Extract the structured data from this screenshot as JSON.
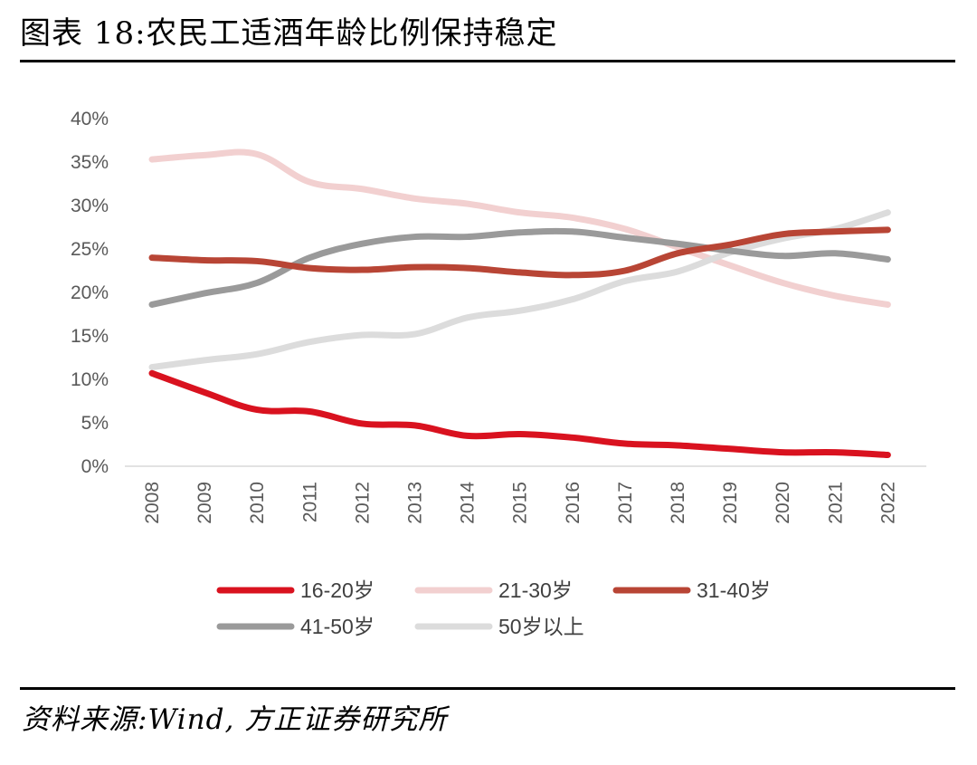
{
  "header": {
    "title": "图表 18:农民工适酒年龄比例保持稳定"
  },
  "footer": {
    "source": "资料来源:Wind, 方正证券研究所"
  },
  "chart_data": {
    "type": "line",
    "title": "图表 18:农民工适酒年龄比例保持稳定",
    "xlabel": "",
    "ylabel": "",
    "x": [
      "2008",
      "2009",
      "2010",
      "2011",
      "2012",
      "2013",
      "2014",
      "2015",
      "2016",
      "2017",
      "2018",
      "2019",
      "2020",
      "2021",
      "2022"
    ],
    "y_ticks": [
      "0%",
      "5%",
      "10%",
      "15%",
      "20%",
      "25%",
      "30%",
      "35%",
      "40%"
    ],
    "ylim": [
      0,
      40
    ],
    "grid": false,
    "legend_position": "bottom",
    "series": [
      {
        "name": "16-20岁",
        "color": "#d9121f",
        "values": [
          10.7,
          8.5,
          6.5,
          6.3,
          4.9,
          4.7,
          3.5,
          3.7,
          3.3,
          2.6,
          2.4,
          2.0,
          1.6,
          1.6,
          1.3
        ]
      },
      {
        "name": "21-30岁",
        "color": "#f2d0d0",
        "values": [
          35.3,
          35.8,
          35.9,
          32.7,
          31.9,
          30.8,
          30.2,
          29.2,
          28.6,
          27.3,
          25.2,
          23.1,
          21.1,
          19.6,
          18.6
        ]
      },
      {
        "name": "31-40岁",
        "color": "#b84535",
        "values": [
          24.0,
          23.7,
          23.6,
          22.8,
          22.6,
          22.9,
          22.8,
          22.3,
          22.0,
          22.5,
          24.5,
          25.5,
          26.7,
          27.0,
          27.2
        ]
      },
      {
        "name": "41-50岁",
        "color": "#9a9a9a",
        "values": [
          18.6,
          19.9,
          21.1,
          24.0,
          25.6,
          26.4,
          26.4,
          26.9,
          27.0,
          26.3,
          25.6,
          24.8,
          24.2,
          24.5,
          23.8
        ]
      },
      {
        "name": "50岁以上",
        "color": "#dcdcdc",
        "values": [
          11.4,
          12.2,
          12.9,
          14.3,
          15.1,
          15.2,
          17.1,
          17.9,
          19.2,
          21.3,
          22.4,
          24.6,
          26.2,
          27.3,
          29.2
        ]
      }
    ]
  }
}
